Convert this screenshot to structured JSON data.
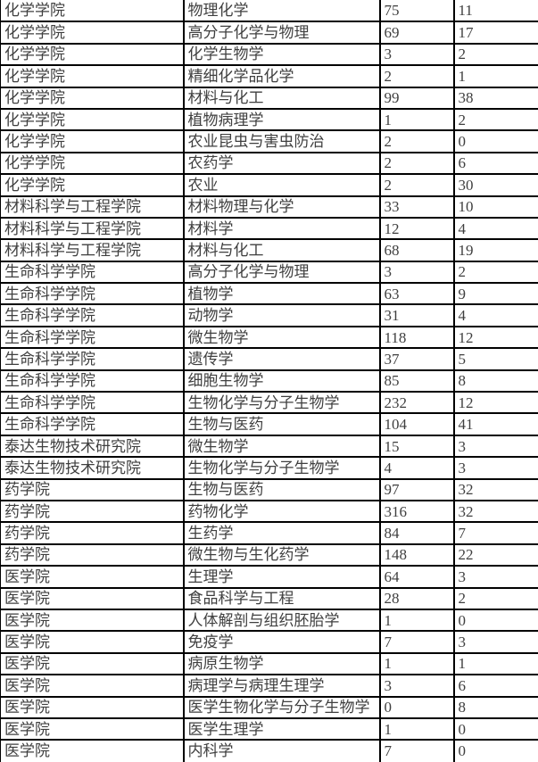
{
  "table": {
    "column_keys": [
      "college",
      "major",
      "value1",
      "value2"
    ],
    "rows": [
      [
        "化学学院",
        "物理化学",
        "75",
        "11"
      ],
      [
        "化学学院",
        "高分子化学与物理",
        "69",
        "17"
      ],
      [
        "化学学院",
        "化学生物学",
        "3",
        "2"
      ],
      [
        "化学学院",
        "精细化学品化学",
        "2",
        "1"
      ],
      [
        "化学学院",
        "材料与化工",
        "99",
        "38"
      ],
      [
        "化学学院",
        "植物病理学",
        "1",
        "2"
      ],
      [
        "化学学院",
        "农业昆虫与害虫防治",
        "2",
        "0"
      ],
      [
        "化学学院",
        "农药学",
        "2",
        "6"
      ],
      [
        "化学学院",
        "农业",
        "2",
        "30"
      ],
      [
        "材料科学与工程学院",
        "材料物理与化学",
        "33",
        "10"
      ],
      [
        "材料科学与工程学院",
        "材料学",
        "12",
        "4"
      ],
      [
        "材料科学与工程学院",
        "材料与化工",
        "68",
        "19"
      ],
      [
        "生命科学学院",
        "高分子化学与物理",
        "3",
        "2"
      ],
      [
        "生命科学学院",
        "植物学",
        "63",
        "9"
      ],
      [
        "生命科学学院",
        "动物学",
        "31",
        "4"
      ],
      [
        "生命科学学院",
        "微生物学",
        "118",
        "12"
      ],
      [
        "生命科学学院",
        "遗传学",
        "37",
        "5"
      ],
      [
        "生命科学学院",
        "细胞生物学",
        "85",
        "8"
      ],
      [
        "生命科学学院",
        "生物化学与分子生物学",
        "232",
        "12"
      ],
      [
        "生命科学学院",
        "生物与医药",
        "104",
        "41"
      ],
      [
        "泰达生物技术研究院",
        "微生物学",
        "15",
        "3"
      ],
      [
        "泰达生物技术研究院",
        "生物化学与分子生物学",
        "4",
        "3"
      ],
      [
        "药学院",
        "生物与医药",
        "97",
        "32"
      ],
      [
        "药学院",
        "药物化学",
        "316",
        "32"
      ],
      [
        "药学院",
        "生药学",
        "84",
        "7"
      ],
      [
        "药学院",
        "微生物与生化药学",
        "148",
        "22"
      ],
      [
        "医学院",
        "生理学",
        "64",
        "3"
      ],
      [
        "医学院",
        "食品科学与工程",
        "28",
        "2"
      ],
      [
        "医学院",
        "人体解剖与组织胚胎学",
        "1",
        "0"
      ],
      [
        "医学院",
        "免疫学",
        "7",
        "3"
      ],
      [
        "医学院",
        "病原生物学",
        "1",
        "1"
      ],
      [
        "医学院",
        "病理学与病理生理学",
        "3",
        "6"
      ],
      [
        "医学院",
        "医学生物化学与分子生物学",
        "0",
        "8"
      ],
      [
        "医学院",
        "医学生理学",
        "1",
        "0"
      ],
      [
        "医学院",
        "内科学",
        "7",
        "0"
      ]
    ],
    "colors": {
      "border": "#000000",
      "text": "#3f3f3f",
      "background": "#ffffff"
    }
  }
}
